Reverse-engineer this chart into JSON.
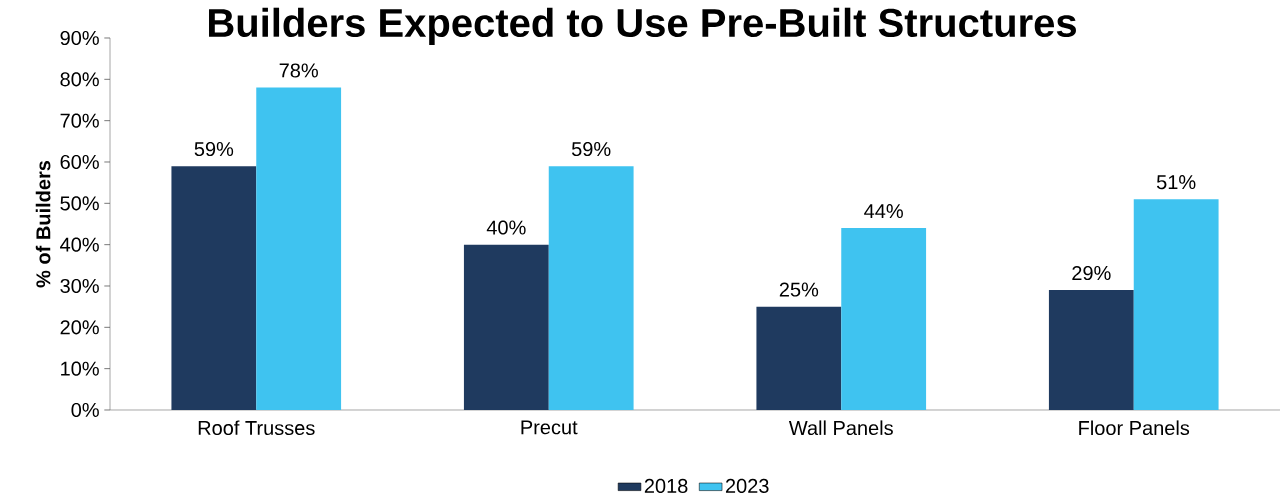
{
  "chart_data": {
    "type": "bar",
    "title": "Builders Expected to Use Pre-Built Structures",
    "ylabel": "% of Builders",
    "categories": [
      "Roof Trusses",
      "Precut",
      "Wall Panels",
      "Floor Panels"
    ],
    "series": [
      {
        "name": "2018",
        "color": "#1f3a5f",
        "values": [
          59,
          40,
          25,
          29
        ],
        "value_labels": [
          "59%",
          "40%",
          "25%",
          "29%"
        ]
      },
      {
        "name": "2023",
        "color": "#3fc3f0",
        "values": [
          78,
          59,
          44,
          51
        ],
        "value_labels": [
          "78%",
          "59%",
          "44%",
          "51%"
        ]
      }
    ],
    "ylim": [
      0,
      90
    ],
    "yticks": [
      {
        "value": 0,
        "label": "0%"
      },
      {
        "value": 10,
        "label": "10%"
      },
      {
        "value": 20,
        "label": "20%"
      },
      {
        "value": 30,
        "label": "30%"
      },
      {
        "value": 40,
        "label": "40%"
      },
      {
        "value": 50,
        "label": "50%"
      },
      {
        "value": 60,
        "label": "60%"
      },
      {
        "value": 70,
        "label": "70%"
      },
      {
        "value": 80,
        "label": "80%"
      },
      {
        "value": 90,
        "label": "90%"
      }
    ],
    "grid": false,
    "legend": "bottom"
  }
}
